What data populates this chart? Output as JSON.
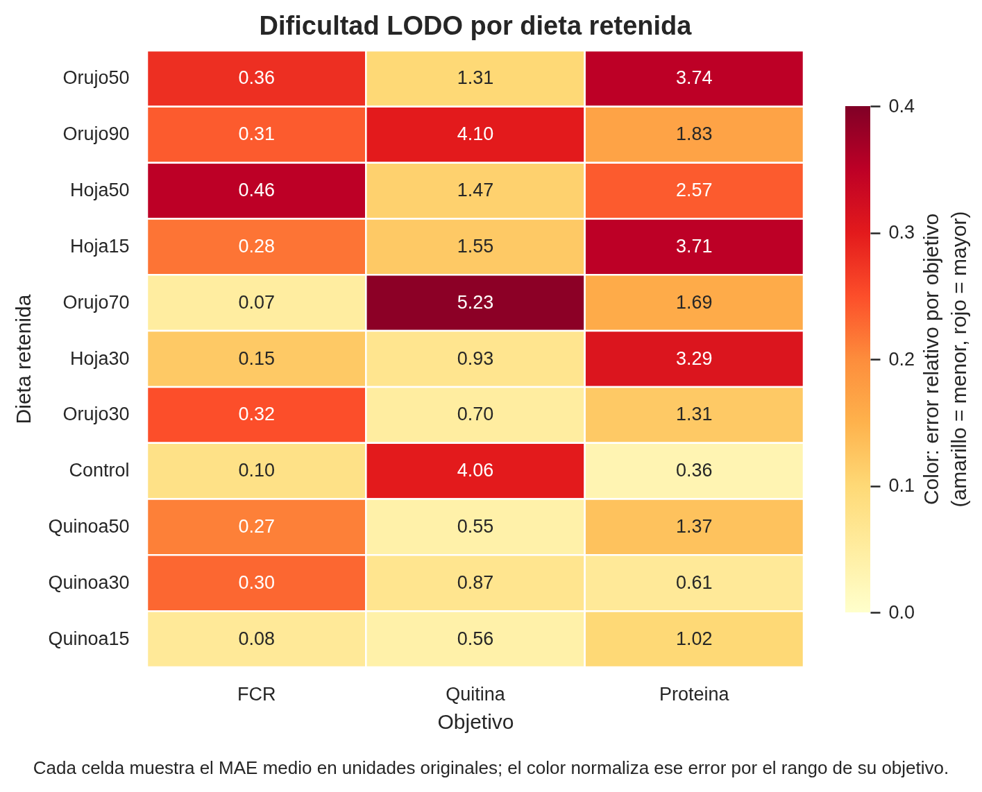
{
  "chart_data": {
    "type": "heatmap",
    "title": "Dificultad LODO por dieta retenida",
    "xlabel": "Objetivo",
    "ylabel": "Dieta retenida",
    "clabel": "Color: error relativo por objetivo\n(amarillo = menor, rojo = mayor)",
    "categories": [
      "FCR",
      "Quitina",
      "Proteina"
    ],
    "y_categories": [
      "Orujo50",
      "Orujo90",
      "Hoja50",
      "Hoja15",
      "Orujo70",
      "Hoja30",
      "Orujo30",
      "Control",
      "Quinoa50",
      "Quinoa30",
      "Quinoa15"
    ],
    "cells": [
      [
        0.28,
        0.1,
        0.35
      ],
      [
        0.24,
        0.3,
        0.17
      ],
      [
        0.35,
        0.11,
        0.24
      ],
      [
        0.22,
        0.12,
        0.35
      ],
      [
        0.05,
        0.39,
        0.16
      ],
      [
        0.12,
        0.07,
        0.31
      ],
      [
        0.25,
        0.05,
        0.12
      ],
      [
        0.08,
        0.3,
        0.03
      ],
      [
        0.21,
        0.04,
        0.13
      ],
      [
        0.23,
        0.07,
        0.06
      ],
      [
        0.06,
        0.04,
        0.1
      ]
    ],
    "clim": [
      0,
      0.4
    ],
    "cticks": [
      {
        "value": 0,
        "label": "0.0"
      },
      0.1,
      0.2,
      0.3,
      0.4
    ],
    "annotations": [
      "0.36",
      "1.31",
      "3.74",
      "0.31",
      "4.10",
      "1.83",
      "0.46",
      "1.47",
      "2.57",
      "0.28",
      "1.55",
      "3.71",
      "0.07",
      "5.23",
      "1.69",
      "0.15",
      "0.93",
      "3.29",
      "0.32",
      "0.70",
      "1.31",
      "0.10",
      "4.06",
      "0.36",
      "0.27",
      "0.55",
      "1.37",
      "0.30",
      "0.87",
      "0.61",
      "0.08",
      "0.56",
      "1.02",
      "Cada celda muestra el MAE medio en unidades originales; el color normaliza ese error por el rango de su objetivo."
    ]
  }
}
